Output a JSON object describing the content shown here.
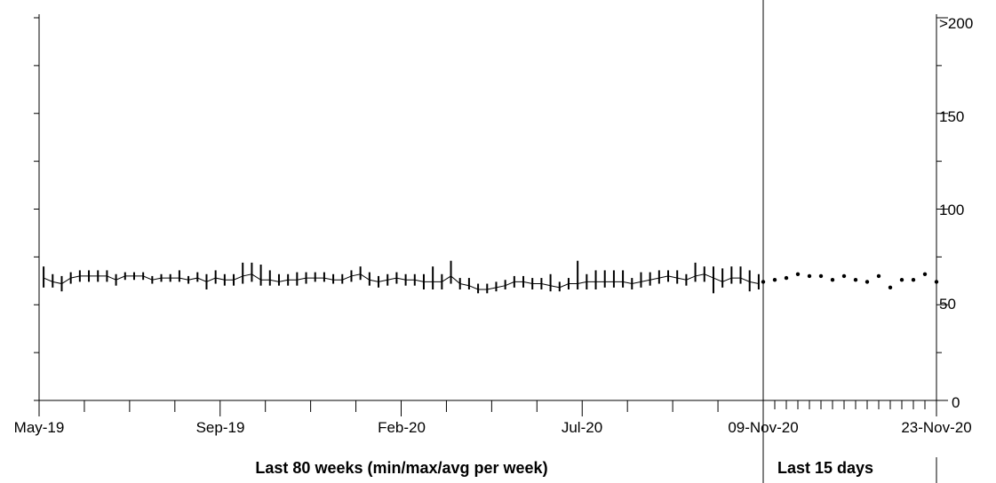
{
  "chart_data": {
    "type": "line",
    "panels": [
      {
        "caption": "Last 80 weeks (min/max/avg per week)",
        "x_tick_labels": [
          "May-19",
          "Sep-19",
          "Feb-20",
          "Jul-20"
        ],
        "weeks": {
          "avg": [
            64,
            62,
            61,
            64,
            65,
            65,
            65,
            65,
            63,
            65,
            65,
            65,
            63,
            64,
            64,
            64,
            63,
            64,
            62,
            64,
            63,
            63,
            65,
            66,
            63,
            63,
            62,
            63,
            63,
            64,
            64,
            64,
            63,
            63,
            65,
            66,
            63,
            62,
            63,
            64,
            63,
            63,
            62,
            62,
            62,
            65,
            61,
            60,
            58,
            58,
            59,
            60,
            62,
            62,
            61,
            61,
            60,
            59,
            61,
            61,
            62,
            62,
            62,
            62,
            62,
            61,
            62,
            63,
            64,
            65,
            64,
            63,
            65,
            66,
            64,
            62,
            64,
            64,
            62,
            61
          ],
          "min": [
            59,
            59,
            57,
            61,
            62,
            62,
            62,
            62,
            60,
            63,
            63,
            63,
            61,
            62,
            62,
            62,
            61,
            62,
            58,
            61,
            60,
            60,
            61,
            62,
            60,
            60,
            60,
            60,
            60,
            61,
            62,
            62,
            61,
            61,
            62,
            63,
            60,
            59,
            60,
            61,
            60,
            60,
            58,
            58,
            58,
            61,
            58,
            58,
            56,
            56,
            57,
            58,
            59,
            59,
            58,
            58,
            57,
            57,
            58,
            58,
            58,
            58,
            59,
            59,
            59,
            58,
            59,
            60,
            61,
            62,
            61,
            60,
            62,
            62,
            56,
            59,
            61,
            61,
            57,
            58
          ],
          "max": [
            70,
            66,
            65,
            67,
            68,
            68,
            68,
            68,
            66,
            67,
            67,
            67,
            65,
            66,
            66,
            68,
            65,
            67,
            66,
            68,
            66,
            66,
            72,
            72,
            71,
            68,
            66,
            66,
            67,
            67,
            67,
            67,
            66,
            66,
            68,
            70,
            67,
            65,
            66,
            67,
            66,
            66,
            66,
            70,
            66,
            73,
            64,
            64,
            61,
            61,
            62,
            63,
            65,
            65,
            64,
            64,
            66,
            62,
            64,
            73,
            66,
            68,
            68,
            68,
            68,
            64,
            67,
            67,
            68,
            68,
            68,
            66,
            72,
            70,
            70,
            69,
            70,
            70,
            68,
            66
          ]
        }
      },
      {
        "caption": "Last 15 days",
        "x_tick_labels": [
          "09-Nov-20",
          "23-Nov-20"
        ],
        "days": [
          62,
          63,
          64,
          66,
          65,
          65,
          63,
          65,
          63,
          62,
          65,
          59,
          63,
          63,
          66,
          62
        ]
      }
    ],
    "y_axis": {
      "range": [
        0,
        200
      ],
      "side": "right",
      "tick_labels": [
        "0",
        "50",
        "100",
        "150",
        ">200"
      ]
    },
    "grid": false
  }
}
